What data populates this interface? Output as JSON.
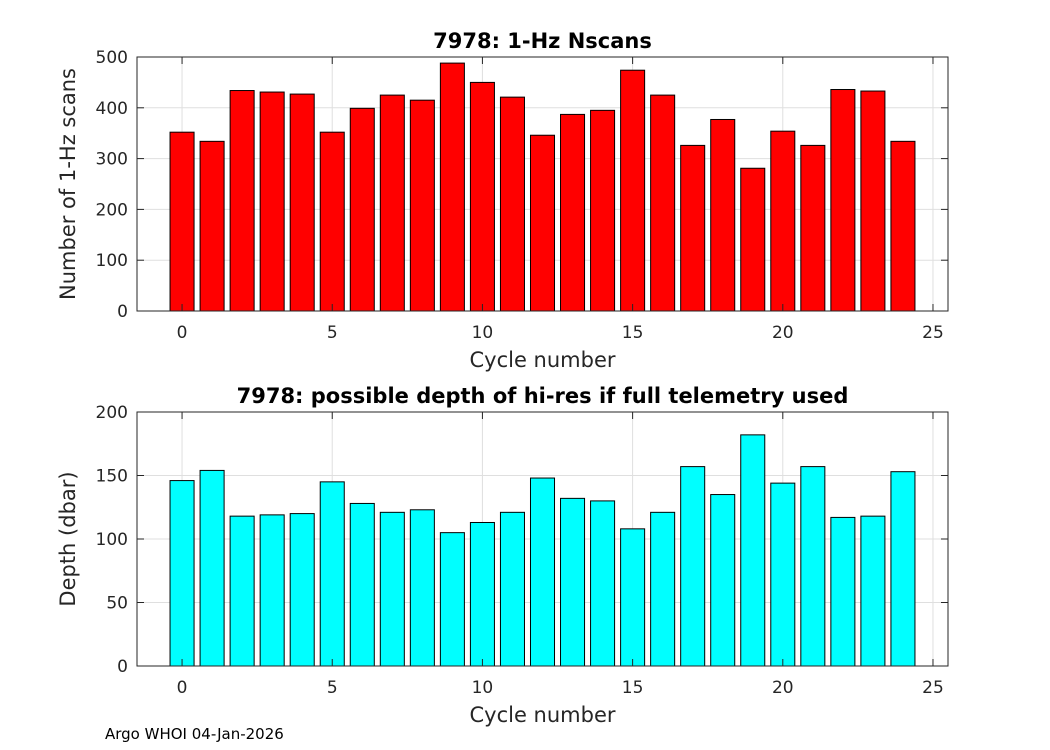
{
  "footer": "Argo WHOI 04-Jan-2026",
  "chart_data": [
    {
      "type": "bar",
      "title": "7978: 1-Hz Nscans",
      "xlabel": "Cycle number",
      "ylabel": "Number of 1-Hz scans",
      "x": [
        0,
        1,
        2,
        3,
        4,
        5,
        6,
        7,
        8,
        9,
        10,
        11,
        12,
        13,
        14,
        15,
        16,
        17,
        18,
        19,
        20,
        21,
        22,
        23,
        24
      ],
      "values": [
        352,
        334,
        434,
        431,
        427,
        352,
        399,
        425,
        415,
        488,
        450,
        421,
        346,
        387,
        395,
        474,
        425,
        326,
        377,
        281,
        354,
        326,
        436,
        433,
        334
      ],
      "xlim": [
        -1.5,
        25.5
      ],
      "ylim": [
        0,
        500
      ],
      "xticks": [
        "0",
        "5",
        "10",
        "15",
        "20",
        "25"
      ],
      "yticks": [
        "0",
        "100",
        "200",
        "300",
        "400",
        "500"
      ],
      "bar_color": "#ff0000",
      "grid": true
    },
    {
      "type": "bar",
      "title": "7978: possible depth of hi-res if full telemetry used",
      "xlabel": "Cycle number",
      "ylabel": "Depth (dbar)",
      "x": [
        0,
        1,
        2,
        3,
        4,
        5,
        6,
        7,
        8,
        9,
        10,
        11,
        12,
        13,
        14,
        15,
        16,
        17,
        18,
        19,
        20,
        21,
        22,
        23,
        24
      ],
      "values": [
        146,
        154,
        118,
        119,
        120,
        145,
        128,
        121,
        123,
        105,
        113,
        121,
        148,
        132,
        130,
        108,
        121,
        157,
        135,
        182,
        144,
        157,
        117,
        118,
        153
      ],
      "xlim": [
        -1.5,
        25.5
      ],
      "ylim": [
        0,
        200
      ],
      "xticks": [
        "0",
        "5",
        "10",
        "15",
        "20",
        "25"
      ],
      "yticks": [
        "0",
        "50",
        "100",
        "150",
        "200"
      ],
      "bar_color": "#00ffff",
      "grid": true
    }
  ]
}
